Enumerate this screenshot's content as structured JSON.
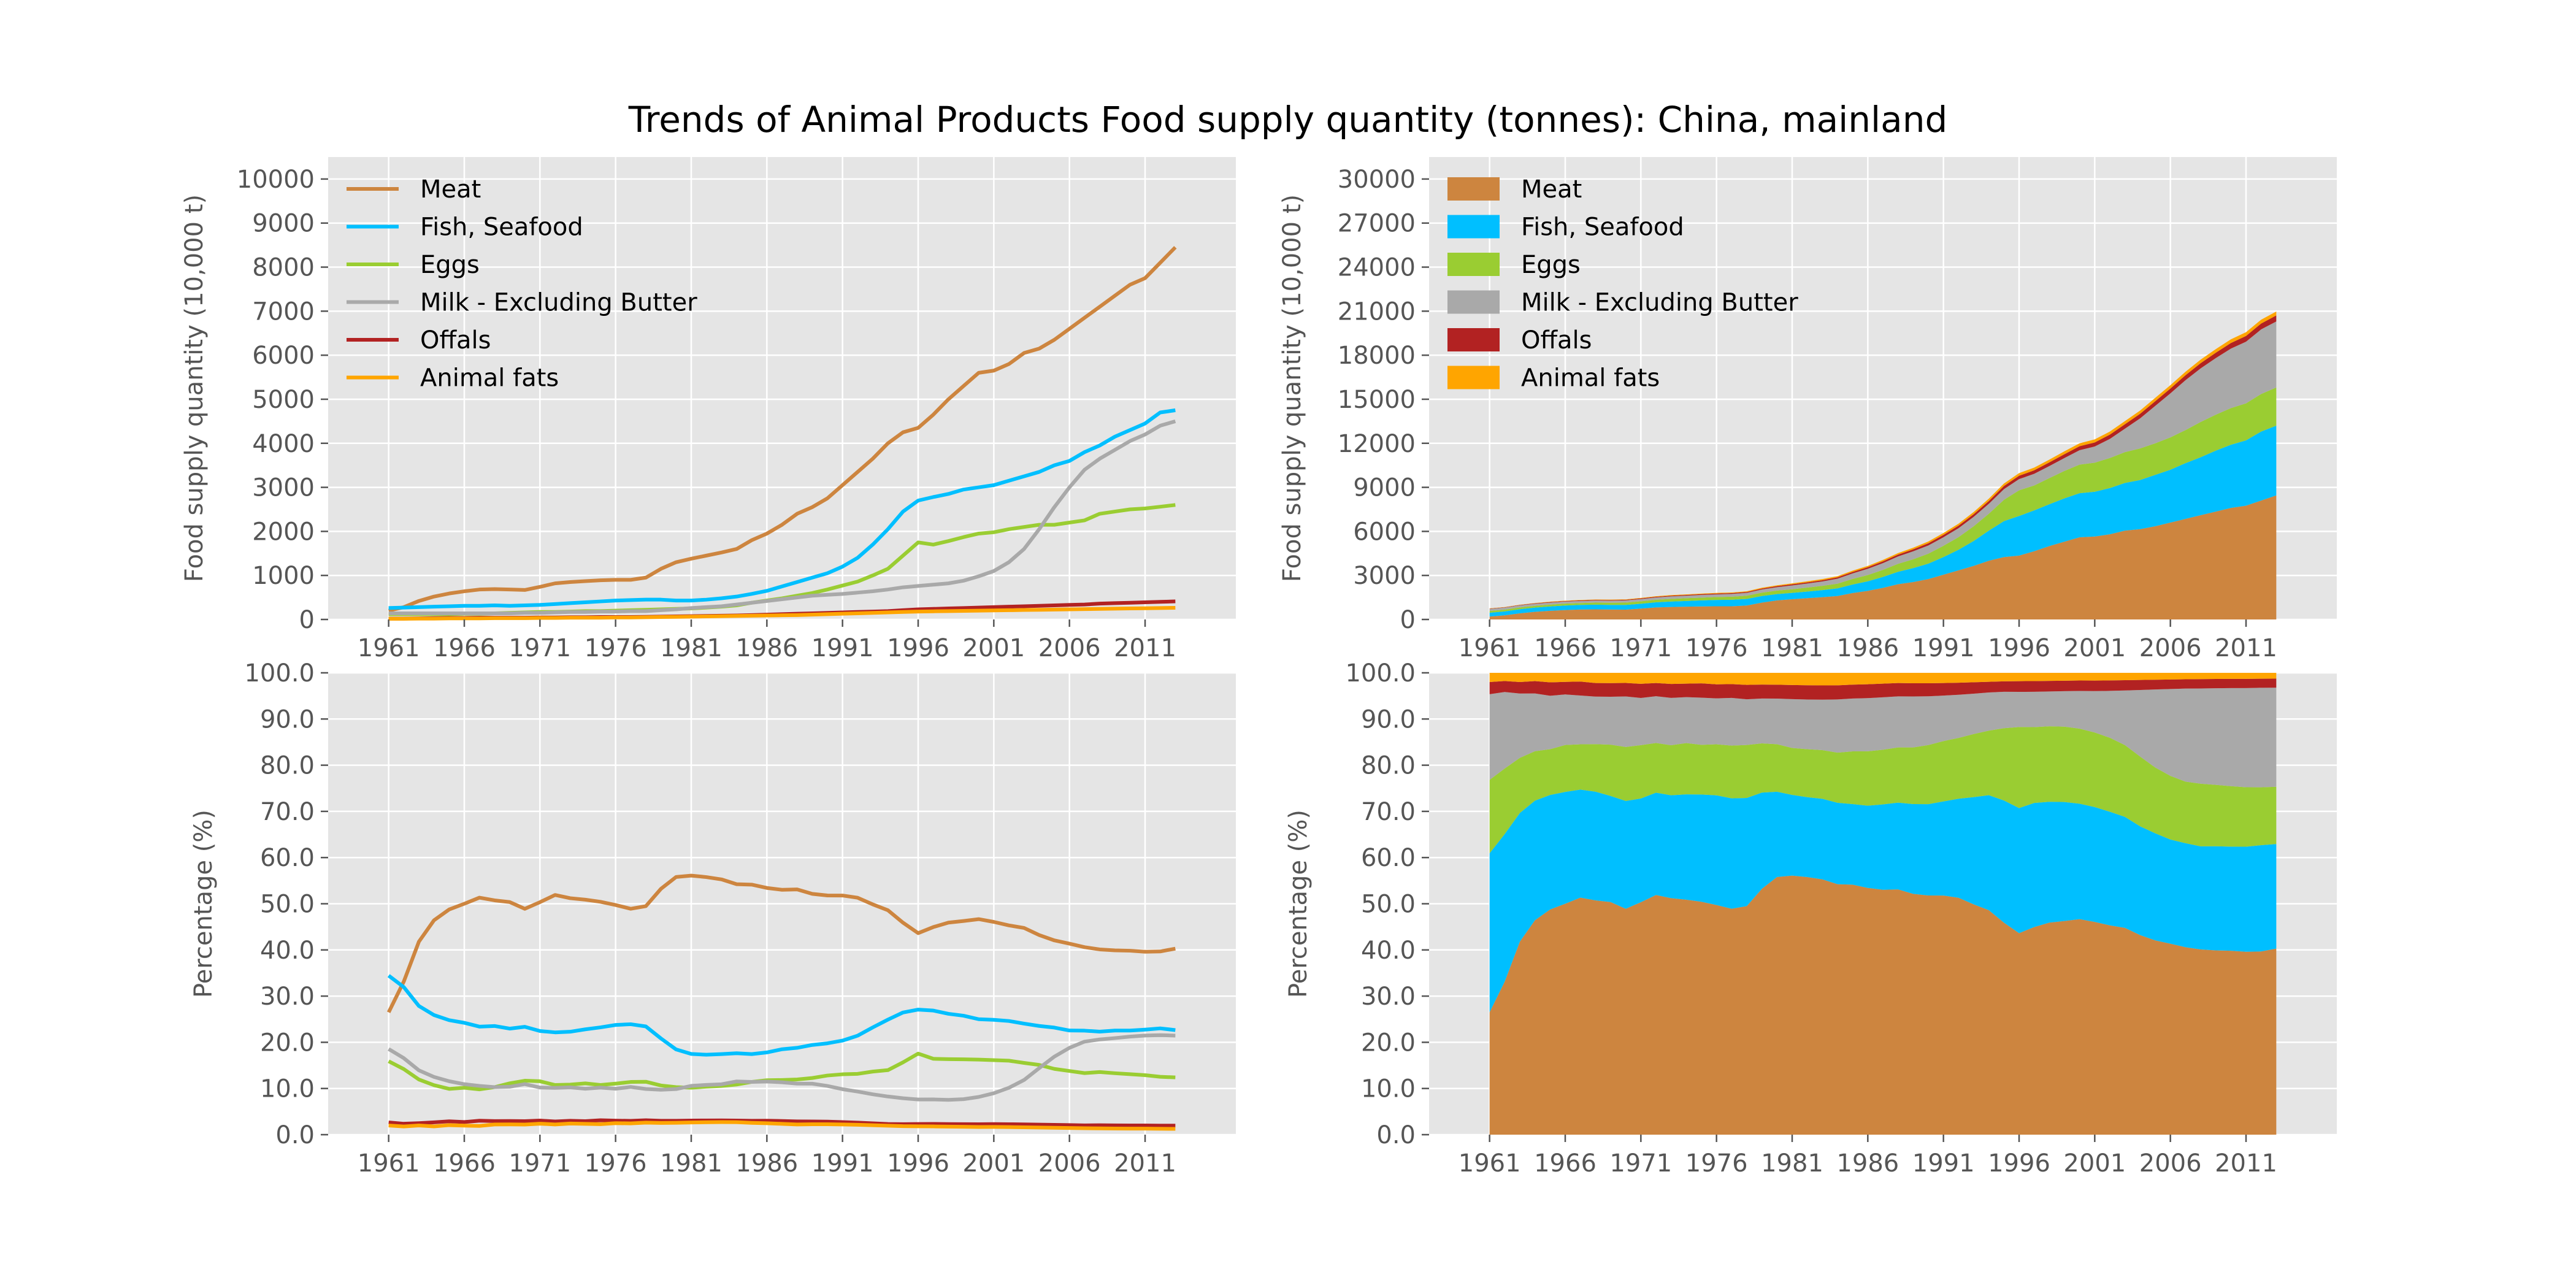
{
  "title": "Trends of Animal Products Food supply quantity (tonnes): China, mainland",
  "chart_data": [
    {
      "type": "line",
      "panel": "top-left",
      "ylabel": "Food supply quantity (10,000 t)",
      "ylim": [
        0,
        10500
      ],
      "yticks": [
        0,
        1000,
        2000,
        3000,
        4000,
        5000,
        6000,
        7000,
        8000,
        9000,
        10000
      ],
      "ytick_labels": [
        "0",
        "1000",
        "2000",
        "3000",
        "4000",
        "5000",
        "6000",
        "7000",
        "8000",
        "9000",
        "10000"
      ],
      "xtick_labels": [
        "1961",
        "1966",
        "1971",
        "1976",
        "1981",
        "1986",
        "1991",
        "1996",
        "2001",
        "2006",
        "2011"
      ],
      "legend": "upper-left",
      "grid": true
    },
    {
      "type": "area",
      "stacked": true,
      "panel": "top-right",
      "ylabel": "Food supply quantity (10,000 t)",
      "ylim": [
        0,
        31500
      ],
      "yticks": [
        0,
        3000,
        6000,
        9000,
        12000,
        15000,
        18000,
        21000,
        24000,
        27000,
        30000
      ],
      "ytick_labels": [
        "0",
        "3000",
        "6000",
        "9000",
        "12000",
        "15000",
        "18000",
        "21000",
        "24000",
        "27000",
        "30000"
      ],
      "xtick_labels": [
        "1961",
        "1966",
        "1971",
        "1976",
        "1981",
        "1986",
        "1991",
        "1996",
        "2001",
        "2006",
        "2011"
      ],
      "legend": "upper-left",
      "grid": true
    },
    {
      "type": "line",
      "panel": "bottom-left",
      "ylabel": "Percentage (%)",
      "ylim": [
        0,
        100
      ],
      "yticks": [
        0,
        10,
        20,
        30,
        40,
        50,
        60,
        70,
        80,
        90,
        100
      ],
      "ytick_labels": [
        "0.0",
        "10.0",
        "20.0",
        "30.0",
        "40.0",
        "50.0",
        "60.0",
        "70.0",
        "80.0",
        "90.0",
        "100.0"
      ],
      "xtick_labels": [
        "1961",
        "1966",
        "1971",
        "1976",
        "1981",
        "1986",
        "1991",
        "1996",
        "2001",
        "2006",
        "2011"
      ],
      "grid": true
    },
    {
      "type": "area",
      "stacked": true,
      "panel": "bottom-right",
      "ylabel": "Percentage (%)",
      "ylim": [
        0,
        100
      ],
      "yticks": [
        0,
        10,
        20,
        30,
        40,
        50,
        60,
        70,
        80,
        90,
        100
      ],
      "ytick_labels": [
        "0.0",
        "10.0",
        "20.0",
        "30.0",
        "40.0",
        "50.0",
        "60.0",
        "70.0",
        "80.0",
        "90.0",
        "100.0"
      ],
      "xtick_labels": [
        "1961",
        "1966",
        "1971",
        "1976",
        "1981",
        "1986",
        "1991",
        "1996",
        "2001",
        "2006",
        "2011"
      ],
      "grid": true
    }
  ],
  "years": [
    1961,
    1962,
    1963,
    1964,
    1965,
    1966,
    1967,
    1968,
    1969,
    1970,
    1971,
    1972,
    1973,
    1974,
    1975,
    1976,
    1977,
    1978,
    1979,
    1980,
    1981,
    1982,
    1983,
    1984,
    1985,
    1986,
    1987,
    1988,
    1989,
    1990,
    1991,
    1992,
    1993,
    1994,
    1995,
    1996,
    1997,
    1998,
    1999,
    2000,
    2001,
    2002,
    2003,
    2004,
    2005,
    2006,
    2007,
    2008,
    2009,
    2010,
    2011,
    2012,
    2013
  ],
  "series": [
    {
      "name": "Meat",
      "color": "#cd853f",
      "values": [
        200,
        280,
        420,
        520,
        590,
        640,
        680,
        690,
        680,
        670,
        740,
        820,
        850,
        870,
        890,
        900,
        900,
        950,
        1150,
        1300,
        1380,
        1450,
        1520,
        1600,
        1800,
        1950,
        2150,
        2400,
        2550,
        2750,
        3050,
        3350,
        3650,
        4000,
        4250,
        4350,
        4650,
        5000,
        5300,
        5600,
        5650,
        5800,
        6050,
        6150,
        6350,
        6600,
        6850,
        7100,
        7350,
        7600,
        7750,
        8100,
        8450
      ]
    },
    {
      "name": "Fish, Seafood",
      "color": "#00bfff",
      "values": [
        260,
        270,
        280,
        290,
        300,
        310,
        310,
        320,
        310,
        320,
        330,
        350,
        370,
        390,
        410,
        430,
        440,
        450,
        450,
        430,
        430,
        450,
        480,
        520,
        580,
        650,
        750,
        850,
        950,
        1050,
        1200,
        1400,
        1700,
        2050,
        2450,
        2700,
        2780,
        2850,
        2950,
        3000,
        3050,
        3150,
        3250,
        3350,
        3500,
        3600,
        3800,
        3950,
        4150,
        4300,
        4450,
        4700,
        4750
      ]
    },
    {
      "name": "Eggs",
      "color": "#9acd32",
      "values": [
        120,
        120,
        120,
        120,
        120,
        130,
        130,
        140,
        150,
        160,
        170,
        170,
        180,
        190,
        190,
        200,
        210,
        220,
        230,
        240,
        250,
        270,
        290,
        320,
        380,
        430,
        480,
        540,
        600,
        680,
        770,
        860,
        1000,
        1150,
        1450,
        1750,
        1700,
        1780,
        1870,
        1950,
        1980,
        2050,
        2100,
        2150,
        2150,
        2200,
        2250,
        2400,
        2450,
        2500,
        2520,
        2560,
        2600
      ]
    },
    {
      "name": "Milk - Excluding Butter",
      "color": "#a9a9a9",
      "values": [
        140,
        140,
        140,
        140,
        140,
        140,
        140,
        140,
        140,
        150,
        150,
        160,
        170,
        170,
        180,
        180,
        190,
        190,
        210,
        230,
        260,
        280,
        300,
        340,
        380,
        420,
        460,
        500,
        540,
        560,
        580,
        610,
        640,
        680,
        730,
        760,
        790,
        820,
        880,
        980,
        1100,
        1300,
        1600,
        2050,
        2550,
        3000,
        3400,
        3650,
        3850,
        4050,
        4200,
        4400,
        4500
      ]
    },
    {
      "name": "Offals",
      "color": "#b22222",
      "values": [
        20,
        20,
        25,
        30,
        35,
        35,
        40,
        40,
        40,
        40,
        45,
        45,
        50,
        50,
        55,
        55,
        55,
        60,
        65,
        70,
        75,
        80,
        85,
        90,
        100,
        110,
        120,
        130,
        140,
        150,
        160,
        170,
        180,
        190,
        210,
        230,
        240,
        250,
        260,
        270,
        280,
        290,
        300,
        310,
        320,
        330,
        340,
        360,
        370,
        380,
        390,
        400,
        410
      ]
    },
    {
      "name": "Animal fats",
      "color": "#ffa500",
      "values": [
        15,
        15,
        20,
        20,
        25,
        25,
        25,
        30,
        30,
        30,
        35,
        35,
        40,
        40,
        40,
        45,
        45,
        50,
        55,
        60,
        65,
        70,
        75,
        80,
        85,
        90,
        95,
        100,
        110,
        120,
        130,
        140,
        150,
        160,
        170,
        180,
        185,
        190,
        195,
        200,
        205,
        210,
        215,
        220,
        225,
        230,
        235,
        240,
        245,
        250,
        255,
        260,
        265
      ]
    }
  ]
}
